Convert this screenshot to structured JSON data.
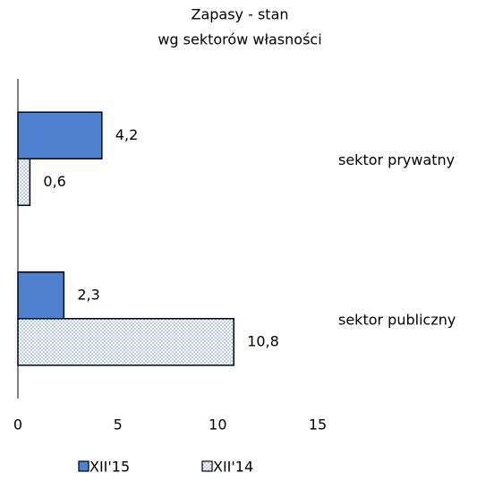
{
  "chart_data": {
    "type": "hbar",
    "title": "Zapasy - stan",
    "subtitle": "wg sektorów własności",
    "categories": [
      "sektor prywatny",
      "sektor publiczny"
    ],
    "series": [
      {
        "name": "XII'15",
        "color": "#4f81d1",
        "values": [
          4.2,
          2.3
        ],
        "value_labels": [
          "4,2",
          "2,3"
        ]
      },
      {
        "name": "XII'14",
        "color": "dotted",
        "values": [
          0.6,
          10.8
        ],
        "value_labels": [
          "0,6",
          "10,8"
        ]
      }
    ],
    "xlim": [
      0,
      15
    ],
    "xticks": [
      0,
      5,
      10,
      15
    ],
    "grid": false,
    "legend": "bottom"
  }
}
